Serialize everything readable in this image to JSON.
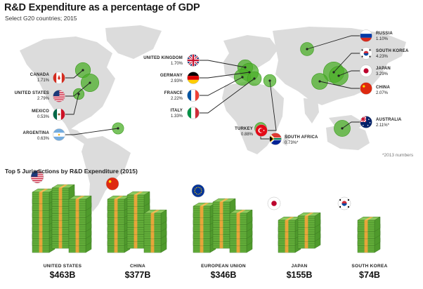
{
  "title": "R&D Expenditure as a percentage of GDP",
  "subtitle": "Select G20 countries; 2015",
  "note": "*2013 numbers",
  "section2_title": "Top 5 Jurisdictions by R&D Expenditure (2015)",
  "colors": {
    "map": "#dcdcdc",
    "bubble": "#4caf2a",
    "bubble_dark": "#3b9a1e",
    "line": "#222222",
    "bill": "#5fa83a",
    "band": "#e7a53a"
  },
  "chart_data": [
    {
      "type": "bubble-map",
      "title": "R&D Expenditure as a percentage of GDP",
      "subtitle": "Select G20 countries; 2015",
      "unit": "% of GDP",
      "points": [
        {
          "country": "CANADA",
          "label": "1.71%",
          "value": 1.71,
          "flag": "canada-flag"
        },
        {
          "country": "UNITED STATES",
          "label": "2.79%",
          "value": 2.79,
          "flag": "usa-flag"
        },
        {
          "country": "MEXICO",
          "label": "0.53%",
          "value": 0.53,
          "flag": "mexico-flag"
        },
        {
          "country": "ARGENTINA",
          "label": "0.63%",
          "value": 0.63,
          "flag": "argentina-flag"
        },
        {
          "country": "UNITED KINGDOM",
          "label": "1.70%",
          "value": 1.7,
          "flag": "uk-flag"
        },
        {
          "country": "GERMANY",
          "label": "2.93%",
          "value": 2.93,
          "flag": "germany-flag"
        },
        {
          "country": "FRANCE",
          "label": "2.22%",
          "value": 2.22,
          "flag": "france-flag"
        },
        {
          "country": "ITALY",
          "label": "1.33%",
          "value": 1.33,
          "flag": "italy-flag"
        },
        {
          "country": "TURKEY",
          "label": "0.88%",
          "value": 0.88,
          "flag": "turkey-flag"
        },
        {
          "country": "SOUTH AFRICA",
          "label": "0.73%*",
          "value": 0.73,
          "flag": "south-africa-flag"
        },
        {
          "country": "RUSSIA",
          "label": "1.10%",
          "value": 1.1,
          "flag": "russia-flag"
        },
        {
          "country": "SOUTH KOREA",
          "label": "4.23%",
          "value": 4.23,
          "flag": "south-korea-flag"
        },
        {
          "country": "JAPAN",
          "label": "3.29%",
          "value": 3.29,
          "flag": "japan-flag"
        },
        {
          "country": "CHINA",
          "label": "2.07%",
          "value": 2.07,
          "flag": "china-flag"
        },
        {
          "country": "AUSTRALIA",
          "label": "2.11%*",
          "value": 2.11,
          "flag": "australia-flag"
        }
      ],
      "annotation": "*2013 numbers"
    },
    {
      "type": "pictograph",
      "title": "Top 5 Jurisdictions by R&D Expenditure (2015)",
      "categories": [
        "UNITED STATES",
        "CHINA",
        "EUROPEAN UNION",
        "JAPAN",
        "SOUTH KOREA"
      ],
      "value_labels": [
        "$463B",
        "$377B",
        "$346B",
        "$155B",
        "$74B"
      ],
      "values": [
        463,
        377,
        346,
        155,
        74
      ],
      "unit": "billion USD",
      "icons": [
        "usa-flag",
        "china-flag",
        "eu-flag",
        "japan-flag",
        "south-korea-flag"
      ]
    }
  ]
}
